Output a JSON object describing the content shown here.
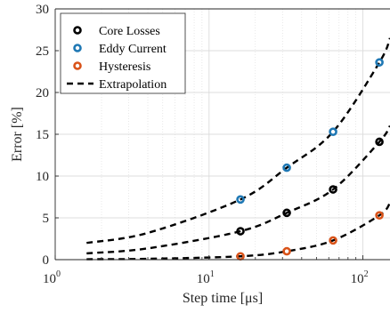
{
  "chart_data": {
    "type": "scatter",
    "xlabel": "Step time [μs]",
    "ylabel": "Error [%]",
    "x_scale": "log",
    "xlim": [
      1,
      150
    ],
    "ylim": [
      0,
      30
    ],
    "x_ticks": [
      {
        "value": 1,
        "base": "10",
        "exp": "0"
      },
      {
        "value": 10,
        "base": "10",
        "exp": "1"
      },
      {
        "value": 100,
        "base": "10",
        "exp": "2"
      }
    ],
    "y_ticks": [
      0,
      5,
      10,
      15,
      20,
      25,
      30
    ],
    "grid": true,
    "legend_position": "top-left",
    "series": [
      {
        "name": "Core Losses",
        "color": "#000000",
        "marker": "circle",
        "x": [
          16,
          32,
          64,
          128
        ],
        "y": [
          3.4,
          5.6,
          8.4,
          14.1
        ]
      },
      {
        "name": "Eddy Current",
        "color": "#1f78b4",
        "marker": "circle",
        "x": [
          16,
          32,
          64,
          128
        ],
        "y": [
          7.2,
          11.0,
          15.3,
          23.6
        ]
      },
      {
        "name": "Hysteresis",
        "color": "#d95319",
        "marker": "circle",
        "x": [
          16,
          32,
          64,
          128
        ],
        "y": [
          0.4,
          1.0,
          2.3,
          5.3
        ]
      }
    ],
    "fits": [
      {
        "x": [
          1.6,
          4,
          16,
          32,
          64,
          128,
          150
        ],
        "y": [
          0.75,
          1.35,
          3.4,
          5.6,
          8.4,
          14.1,
          16.0
        ]
      },
      {
        "x": [
          1.6,
          4,
          16,
          32,
          64,
          128,
          150
        ],
        "y": [
          2.0,
          3.2,
          7.2,
          11.0,
          15.3,
          23.6,
          26.5
        ]
      },
      {
        "x": [
          1.6,
          4,
          16,
          32,
          64,
          128,
          150
        ],
        "y": [
          0.05,
          0.1,
          0.4,
          1.0,
          2.3,
          5.3,
          6.8
        ]
      }
    ],
    "extrapolation_label": "Extrapolation"
  }
}
